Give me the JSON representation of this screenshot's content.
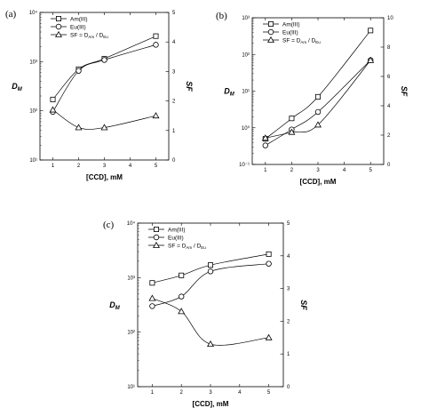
{
  "chart_data": [
    {
      "type": "line",
      "panel_label": "(a)",
      "xlabel": "[CCD], mM",
      "ylabel_left": "D",
      "ylabel_left_sub": "M",
      "ylabel_right": "SF",
      "x_ticks": [
        "1",
        "2",
        "3",
        "4",
        "5"
      ],
      "y_left_ticks": [
        "10¹",
        "10²",
        "10³"
      ],
      "y_left_top_label": "10⁴",
      "y_right_ticks": [
        "0",
        "1",
        "2",
        "3",
        "4",
        "5"
      ],
      "xlim": [
        0.5,
        5.5
      ],
      "ylim_left": [
        10,
        10000
      ],
      "y_left_scale": "log",
      "ylim_right": [
        0,
        5
      ],
      "legend_position": "top-left",
      "series": [
        {
          "name": "Am(III)",
          "marker": "square",
          "axis": "left",
          "x": [
            1,
            2,
            3,
            5
          ],
          "y": [
            170,
            700,
            1150,
            3300
          ]
        },
        {
          "name": "Eu(III)",
          "marker": "circle",
          "axis": "left",
          "x": [
            1,
            2,
            3,
            5
          ],
          "y": [
            95,
            650,
            1080,
            2200
          ]
        },
        {
          "name": "SF = D",
          "name_sub": "Am",
          "name_mid": " / D",
          "name_sub2": "Eu",
          "marker": "triangle",
          "axis": "right",
          "x": [
            1,
            2,
            3,
            5
          ],
          "y": [
            1.7,
            1.1,
            1.1,
            1.5
          ]
        }
      ]
    },
    {
      "type": "line",
      "panel_label": "(b)",
      "xlabel": "[CCD], mM",
      "ylabel_left": "D",
      "ylabel_left_sub": "M",
      "ylabel_right": "SF",
      "x_ticks": [
        "1",
        "2",
        "3",
        "4",
        "5"
      ],
      "y_left_ticks": [
        "10⁻¹",
        "10⁰",
        "10¹",
        "10²"
      ],
      "y_left_top_label": "10³",
      "y_right_ticks": [
        "0",
        "2",
        "4",
        "6",
        "8",
        "10"
      ],
      "xlim": [
        0.5,
        5.5
      ],
      "ylim_left": [
        0.1,
        1000
      ],
      "y_left_scale": "log",
      "ylim_right": [
        0,
        10
      ],
      "legend_position": "top-left",
      "series": [
        {
          "name": "Am(III)",
          "marker": "square",
          "axis": "left",
          "x": [
            1,
            2,
            3,
            5
          ],
          "y": [
            0.5,
            1.8,
            7,
            450
          ]
        },
        {
          "name": "Eu(III)",
          "marker": "circle",
          "axis": "left",
          "x": [
            1,
            2,
            3,
            5
          ],
          "y": [
            0.33,
            0.9,
            2.7,
            70
          ]
        },
        {
          "name": "SF = D",
          "name_sub": "Am",
          "name_mid": " / D",
          "name_sub2": "Eu",
          "marker": "triangle",
          "axis": "right",
          "x": [
            1,
            2,
            3,
            5
          ],
          "y": [
            1.8,
            2.2,
            2.7,
            7.1
          ]
        }
      ]
    },
    {
      "type": "line",
      "panel_label": "(c)",
      "xlabel": "[CCD], mM",
      "ylabel_left": "D",
      "ylabel_left_sub": "M",
      "ylabel_right": "SF",
      "x_ticks": [
        "1",
        "2",
        "3",
        "4",
        "5"
      ],
      "y_left_ticks": [
        "10¹",
        "10²",
        "10³"
      ],
      "y_left_top_label": "10⁴",
      "y_right_ticks": [
        "0",
        "1",
        "2",
        "3",
        "4",
        "5"
      ],
      "xlim": [
        0.5,
        5.5
      ],
      "ylim_left": [
        10,
        10000
      ],
      "y_left_scale": "log",
      "ylim_right": [
        0,
        5
      ],
      "legend_position": "top-left",
      "series": [
        {
          "name": "Am(III)",
          "marker": "square",
          "axis": "left",
          "x": [
            1,
            2,
            3,
            5
          ],
          "y": [
            800,
            1100,
            1700,
            2700
          ]
        },
        {
          "name": "Eu(III)",
          "marker": "circle",
          "axis": "left",
          "x": [
            1,
            2,
            3,
            5
          ],
          "y": [
            300,
            450,
            1300,
            1800
          ]
        },
        {
          "name": "SF = D",
          "name_sub": "Am",
          "name_mid": " / D",
          "name_sub2": "Eu",
          "marker": "triangle",
          "axis": "right",
          "x": [
            1,
            2,
            3,
            5
          ],
          "y": [
            2.7,
            2.3,
            1.3,
            1.5
          ]
        }
      ]
    }
  ]
}
